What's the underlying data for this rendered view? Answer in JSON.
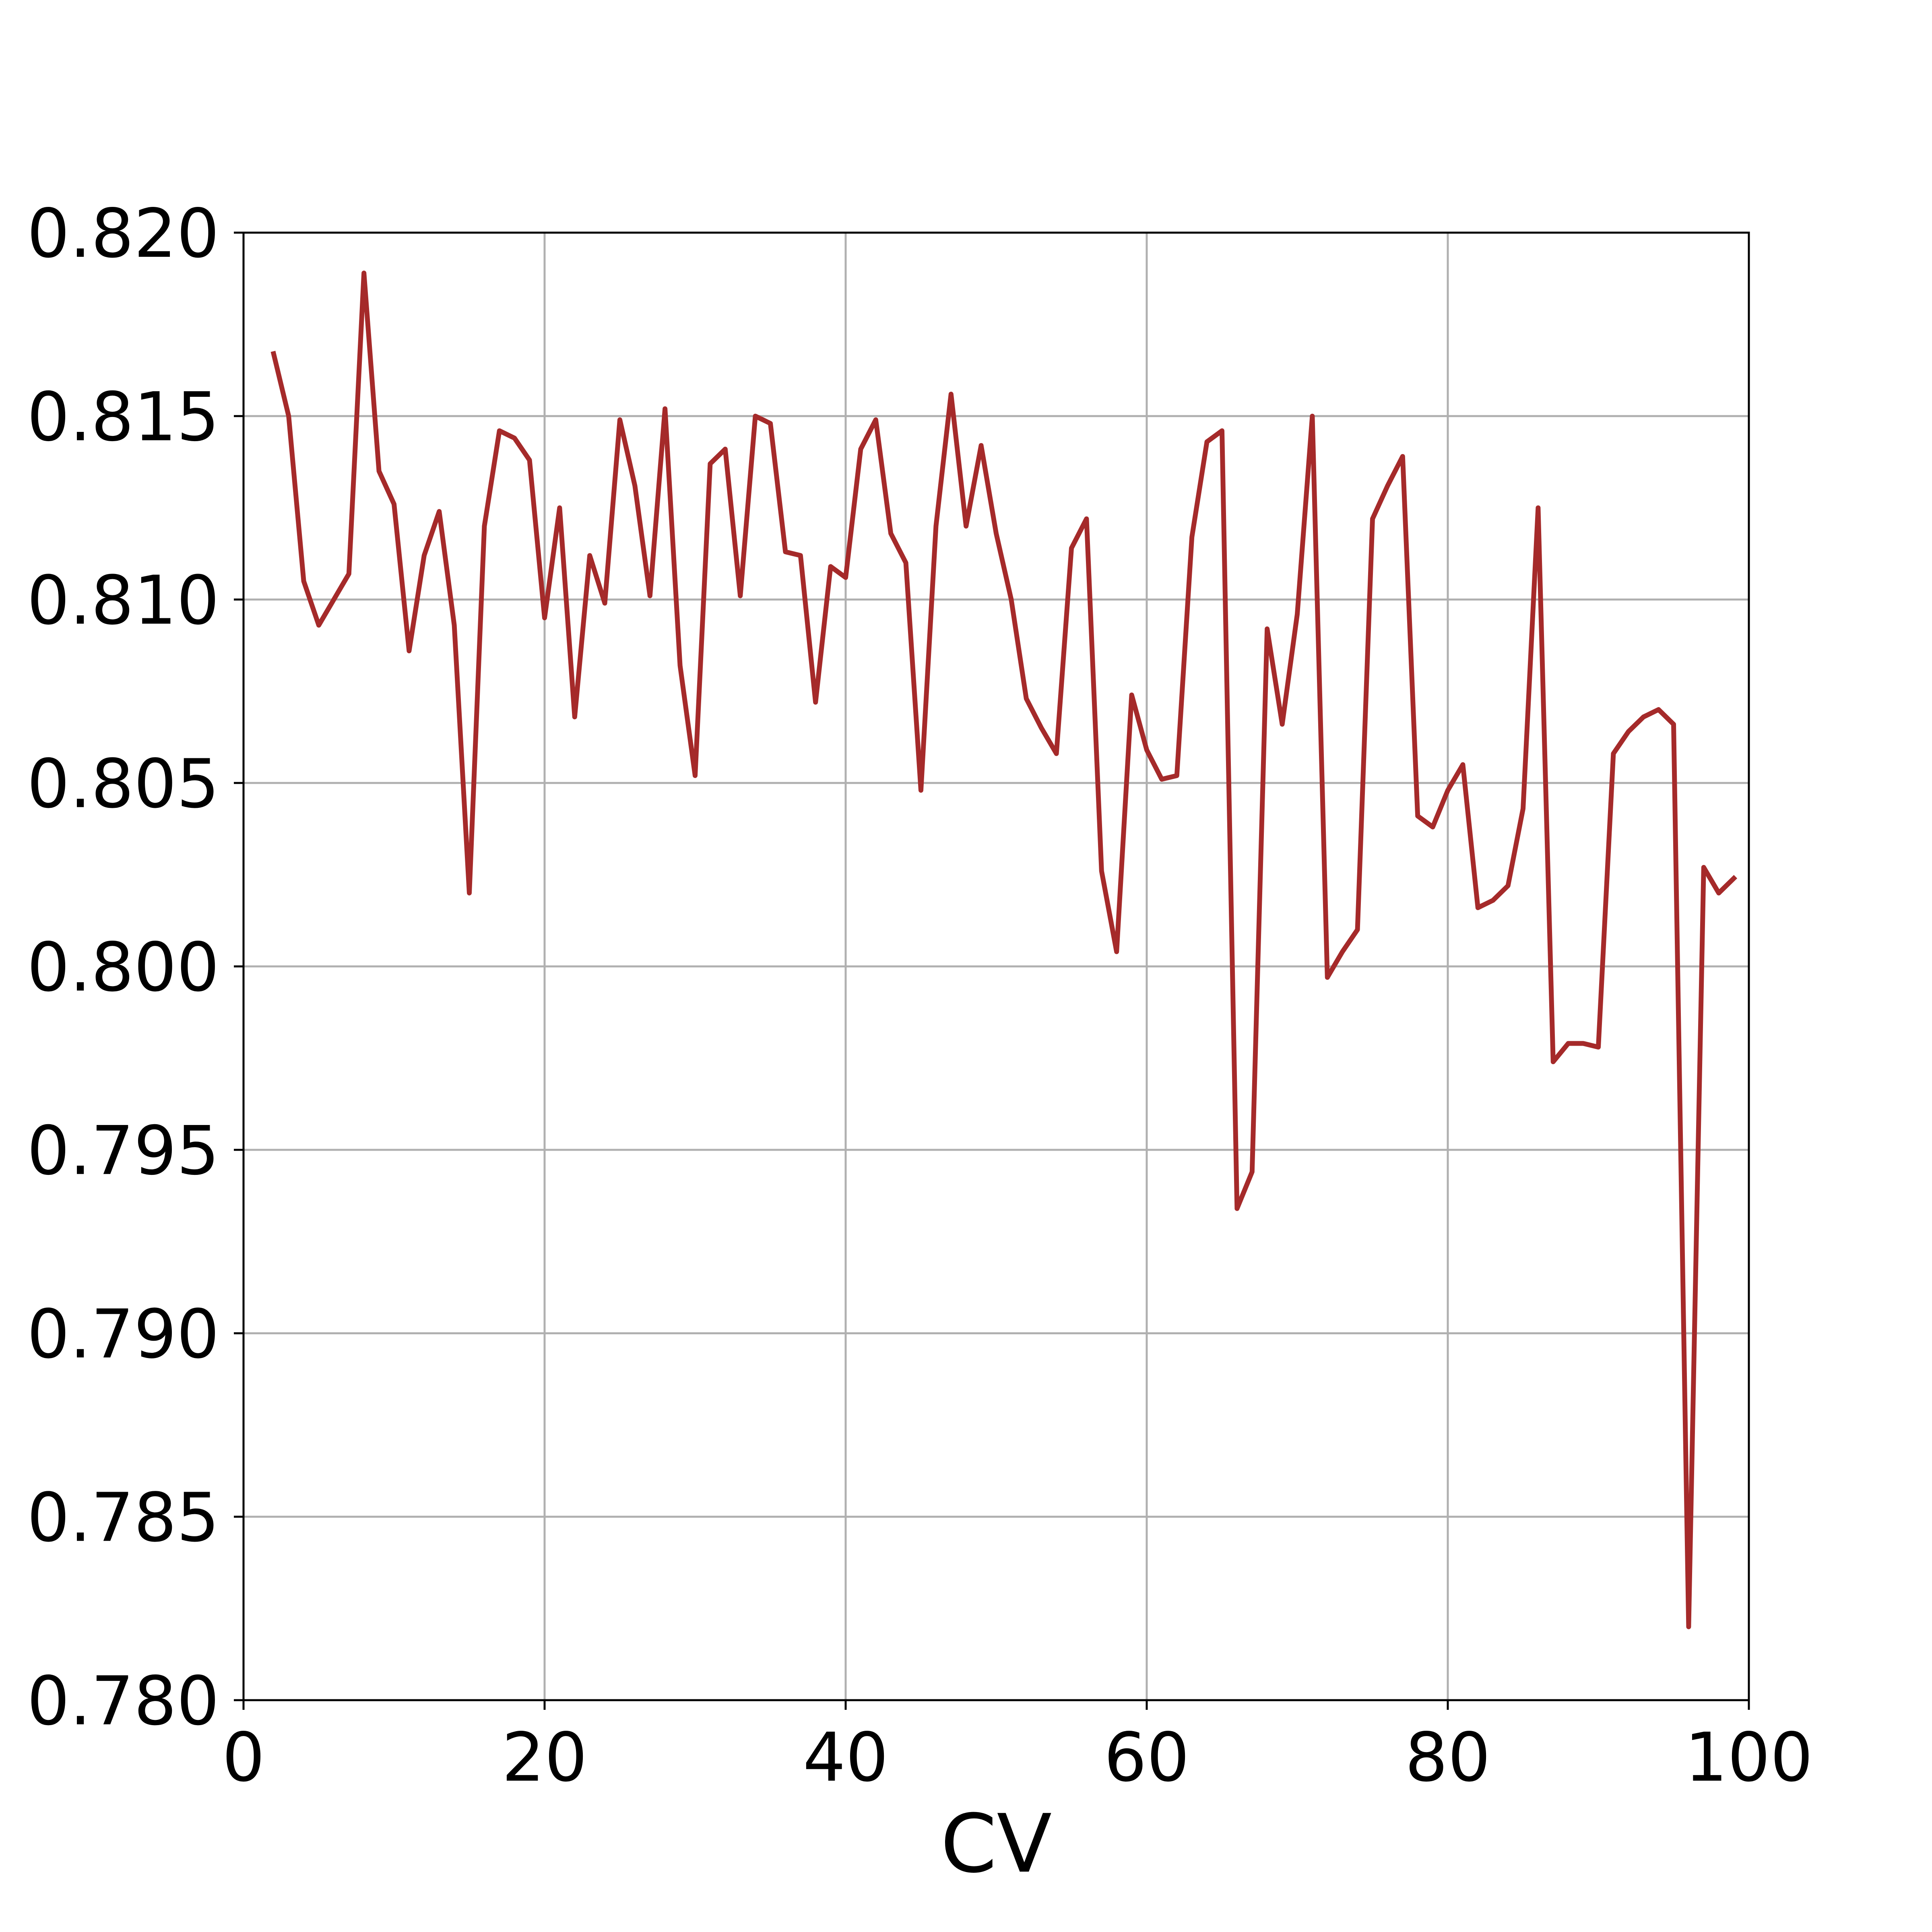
{
  "chart_data": {
    "type": "line",
    "title": "",
    "xlabel": "CV",
    "ylabel": "",
    "xlim": [
      0,
      100
    ],
    "ylim": [
      0.78,
      0.82
    ],
    "x_ticks": [
      0,
      20,
      40,
      60,
      80,
      100
    ],
    "y_ticks": [
      0.78,
      0.785,
      0.79,
      0.795,
      0.8,
      0.805,
      0.81,
      0.815,
      0.82
    ],
    "y_tick_decimals": 3,
    "grid": true,
    "legend": "none",
    "series": [
      {
        "color": "#a52a2a",
        "x": [
          2,
          3,
          4,
          5,
          6,
          7,
          8,
          9,
          10,
          11,
          12,
          13,
          14,
          15,
          16,
          17,
          18,
          19,
          20,
          21,
          22,
          23,
          24,
          25,
          26,
          27,
          28,
          29,
          30,
          31,
          32,
          33,
          34,
          35,
          36,
          37,
          38,
          39,
          40,
          41,
          42,
          43,
          44,
          45,
          46,
          47,
          48,
          49,
          50,
          51,
          52,
          53,
          54,
          55,
          56,
          57,
          58,
          59,
          60,
          61,
          62,
          63,
          64,
          65,
          66,
          67,
          68,
          69,
          70,
          71,
          72,
          73,
          74,
          75,
          76,
          77,
          78,
          79,
          80,
          81,
          82,
          83,
          84,
          85,
          86,
          87,
          88,
          89,
          90,
          91,
          92,
          93,
          94,
          95,
          96,
          97,
          98,
          99
        ],
        "y": [
          0.8167,
          0.815,
          0.8105,
          0.8093,
          0.81,
          0.8107,
          0.8189,
          0.8135,
          0.8126,
          0.8086,
          0.8112,
          0.8124,
          0.8093,
          0.802,
          0.812,
          0.8146,
          0.8144,
          0.8138,
          0.8095,
          0.8125,
          0.8068,
          0.8112,
          0.8099,
          0.8149,
          0.8131,
          0.8101,
          0.8152,
          0.8082,
          0.8052,
          0.8137,
          0.8141,
          0.8101,
          0.815,
          0.8148,
          0.8113,
          0.8112,
          0.8072,
          0.8109,
          0.8106,
          0.8141,
          0.8149,
          0.8118,
          0.811,
          0.8048,
          0.812,
          0.8156,
          0.812,
          0.8142,
          0.8118,
          0.81,
          0.8073,
          0.8065,
          0.8058,
          0.8114,
          0.8122,
          0.8026,
          0.8004,
          0.8074,
          0.8059,
          0.8051,
          0.8052,
          0.8117,
          0.8143,
          0.8146,
          0.7934,
          0.7944,
          0.8092,
          0.8066,
          0.8096,
          0.815,
          0.7997,
          0.8004,
          0.801,
          0.8122,
          0.8131,
          0.8139,
          0.8041,
          0.8038,
          0.8048,
          0.8055,
          0.8016,
          0.8018,
          0.8022,
          0.8043,
          0.8125,
          0.7974,
          0.7979,
          0.7979,
          0.7978,
          0.8058,
          0.8064,
          0.8068,
          0.807,
          0.8066,
          0.782,
          0.8027,
          0.802,
          0.8024
        ]
      }
    ]
  }
}
